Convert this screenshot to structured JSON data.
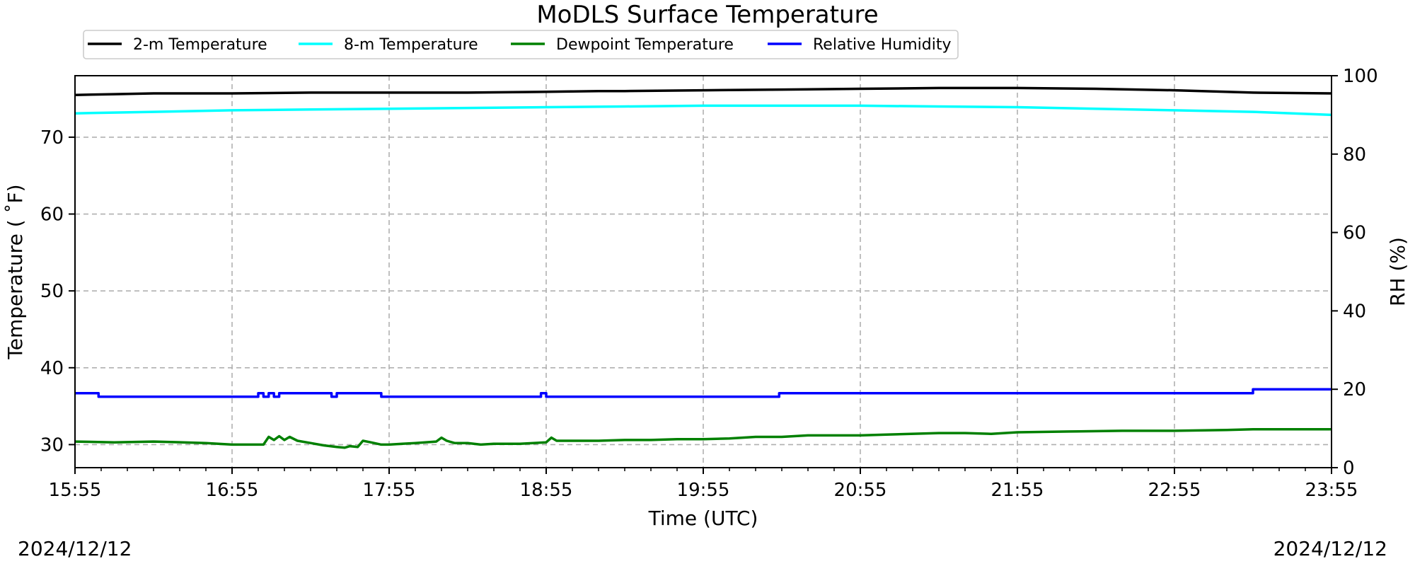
{
  "chart_data": {
    "type": "line",
    "title": "MoDLS Surface Temperature",
    "xlabel": "Time (UTC)",
    "ylabel": "Temperature ($^\\circ$F)",
    "ylabel_display": "Temperature ( ˚F)",
    "y2label": "RH (%)",
    "x_ticks": [
      "15:55",
      "16:55",
      "17:55",
      "18:55",
      "19:55",
      "20:55",
      "21:55",
      "22:55",
      "23:55"
    ],
    "x_range_minutes": [
      0,
      480
    ],
    "ylim": [
      27,
      78
    ],
    "y_ticks": [
      30,
      40,
      50,
      60,
      70
    ],
    "y2lim": [
      0,
      100
    ],
    "y2_ticks": [
      0,
      20,
      40,
      60,
      80,
      100
    ],
    "grid": true,
    "legend_position": "top-left, above plot",
    "dates": {
      "left": "2024/12/12",
      "right": "2024/12/12"
    },
    "series": [
      {
        "name": "2-m Temperature",
        "color": "#000000",
        "axis": "left",
        "x": [
          0,
          15,
          30,
          60,
          90,
          120,
          150,
          180,
          200,
          210,
          240,
          270,
          300,
          330,
          360,
          390,
          420,
          450,
          480
        ],
        "y": [
          75.5,
          75.6,
          75.7,
          75.7,
          75.8,
          75.8,
          75.8,
          75.9,
          76.0,
          76.0,
          76.1,
          76.2,
          76.3,
          76.4,
          76.4,
          76.3,
          76.1,
          75.8,
          75.7
        ]
      },
      {
        "name": "8-m Temperature",
        "color": "#00ffff",
        "axis": "left",
        "x": [
          0,
          30,
          60,
          90,
          120,
          150,
          180,
          210,
          240,
          270,
          300,
          330,
          360,
          390,
          420,
          450,
          480
        ],
        "y": [
          73.1,
          73.3,
          73.5,
          73.6,
          73.7,
          73.8,
          73.9,
          74.0,
          74.1,
          74.1,
          74.1,
          74.0,
          73.9,
          73.7,
          73.5,
          73.3,
          72.9
        ]
      },
      {
        "name": "Dewpoint Temperature",
        "color": "#008000",
        "axis": "left",
        "x": [
          0,
          15,
          30,
          50,
          60,
          70,
          72,
          74,
          76,
          78,
          80,
          82,
          85,
          90,
          95,
          100,
          103,
          105,
          108,
          110,
          113,
          117,
          120,
          125,
          130,
          138,
          140,
          142,
          145,
          150,
          155,
          160,
          170,
          180,
          182,
          184,
          190,
          200,
          210,
          220,
          230,
          240,
          250,
          260,
          270,
          280,
          300,
          310,
          330,
          340,
          350,
          360,
          380,
          400,
          420,
          440,
          450,
          460,
          470,
          480
        ],
        "y": [
          30.4,
          30.3,
          30.4,
          30.2,
          30.0,
          30.0,
          30.0,
          31.0,
          30.6,
          31.1,
          30.6,
          31.0,
          30.5,
          30.2,
          29.9,
          29.7,
          29.6,
          29.8,
          29.7,
          30.5,
          30.3,
          30.0,
          30.0,
          30.1,
          30.2,
          30.4,
          30.9,
          30.5,
          30.2,
          30.2,
          30.0,
          30.1,
          30.1,
          30.3,
          30.9,
          30.5,
          30.5,
          30.5,
          30.6,
          30.6,
          30.7,
          30.7,
          30.8,
          31.0,
          31.0,
          31.2,
          31.2,
          31.3,
          31.5,
          31.5,
          31.4,
          31.6,
          31.7,
          31.8,
          31.8,
          31.9,
          32.0,
          32.0,
          32.0,
          32.0
        ]
      },
      {
        "name": "Relative Humidity",
        "color": "#0000ff",
        "axis": "right",
        "x": [
          0,
          9,
          9,
          70,
          70,
          72,
          72,
          74,
          74,
          76,
          76,
          78,
          78,
          98,
          98,
          100,
          100,
          117,
          117,
          120,
          120,
          178,
          178,
          180,
          180,
          269,
          269,
          450,
          450,
          480
        ],
        "y": [
          19.0,
          19.0,
          18.1,
          18.1,
          19.0,
          19.0,
          18.1,
          18.1,
          19.0,
          19.0,
          18.1,
          18.1,
          19.0,
          19.0,
          18.1,
          18.1,
          19.0,
          19.0,
          18.1,
          18.1,
          18.1,
          18.1,
          19.0,
          19.0,
          18.1,
          18.1,
          19.0,
          19.0,
          20.0,
          20.0
        ]
      }
    ]
  }
}
